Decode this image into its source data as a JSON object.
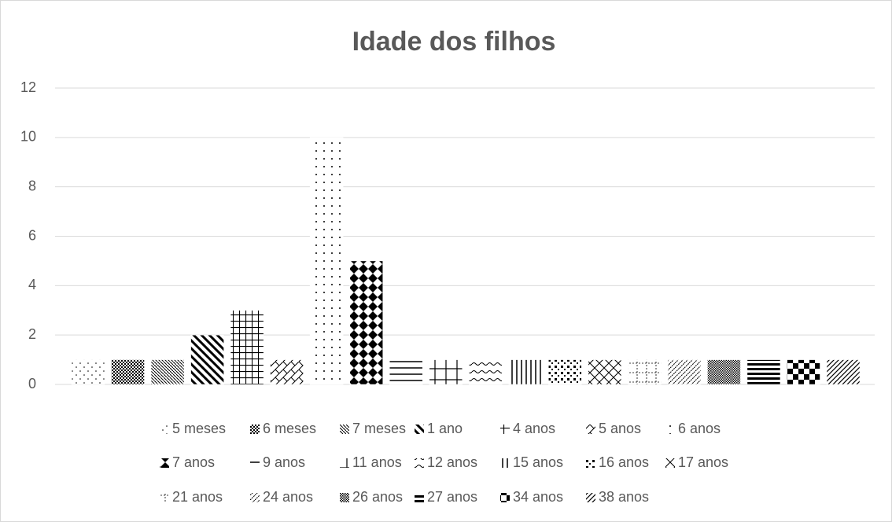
{
  "chart_data": {
    "type": "bar",
    "title": "Idade dos filhos",
    "ylim": [
      0,
      12
    ],
    "yticks": [
      0,
      2,
      4,
      6,
      8,
      10,
      12
    ],
    "grid": true,
    "series": [
      {
        "name": "5 meses",
        "color": "#000000",
        "values": [
          1
        ]
      },
      {
        "name": "6 meses",
        "color": "#000000",
        "values": [
          1
        ]
      },
      {
        "name": "7 meses",
        "color": "#000000",
        "values": [
          1
        ]
      },
      {
        "name": "1 ano",
        "color": "#000000",
        "values": [
          2
        ]
      },
      {
        "name": "4 anos",
        "color": "#000000",
        "values": [
          3
        ]
      },
      {
        "name": "5 anos",
        "color": "#000000",
        "values": [
          1
        ]
      },
      {
        "name": "6 anos",
        "color": "#000000",
        "values": [
          10
        ]
      },
      {
        "name": "7 anos",
        "color": "#000000",
        "values": [
          5
        ]
      },
      {
        "name": "9 anos",
        "color": "#000000",
        "values": [
          1
        ]
      },
      {
        "name": "11 anos",
        "color": "#000000",
        "values": [
          1
        ]
      },
      {
        "name": "12 anos",
        "color": "#000000",
        "values": [
          1
        ]
      },
      {
        "name": "15 anos",
        "color": "#000000",
        "values": [
          1
        ]
      },
      {
        "name": "16 anos",
        "color": "#000000",
        "values": [
          1
        ]
      },
      {
        "name": "17 anos",
        "color": "#000000",
        "values": [
          1
        ]
      },
      {
        "name": "21 anos",
        "color": "#000000",
        "values": [
          1
        ]
      },
      {
        "name": "24 anos",
        "color": "#000000",
        "values": [
          1
        ]
      },
      {
        "name": "26 anos",
        "color": "#000000",
        "values": [
          1
        ]
      },
      {
        "name": "27 anos",
        "color": "#000000",
        "values": [
          1
        ]
      },
      {
        "name": "34 anos",
        "color": "#000000",
        "values": [
          1
        ]
      },
      {
        "name": "38 anos",
        "color": "#000000",
        "values": [
          1
        ]
      }
    ]
  }
}
